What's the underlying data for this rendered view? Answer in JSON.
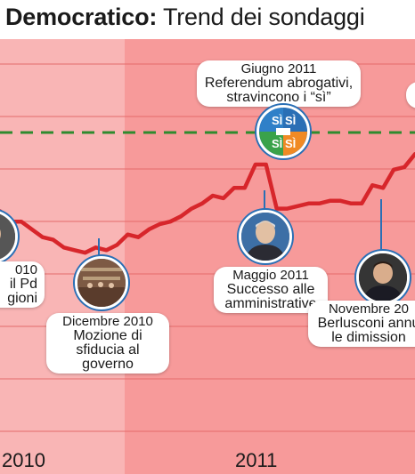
{
  "title": {
    "bold": "Democratico:",
    "rest": " Trend dei sondaggi"
  },
  "chart_data": {
    "type": "line",
    "title": "Democratico: Trend dei sondaggi",
    "x_labels": [
      "2010",
      "2011"
    ],
    "series": [
      {
        "name": "",
        "color": "#d7262b",
        "values": [
          31.0,
          30.6,
          30.6,
          30.3,
          30.0,
          29.9,
          29.6,
          29.5,
          29.4,
          29.6,
          29.5,
          29.7,
          30.1,
          30.0,
          30.3,
          30.5,
          30.6,
          30.8,
          31.1,
          31.3,
          31.6,
          31.5,
          31.9,
          31.9,
          32.8,
          32.8,
          31.1,
          31.1,
          31.2,
          31.3,
          31.3,
          31.4,
          31.4,
          31.3,
          31.3,
          32.0,
          31.9,
          32.6,
          32.7,
          33.2
        ]
      }
    ],
    "reference_line": {
      "style": "dashed",
      "color": "#2e8b2e"
    },
    "background_bands": [
      "#f9b5b5",
      "#f79a9a"
    ],
    "annotations": [
      {
        "date": "Giugno 2011",
        "text": "Referendum abrogativi, stravincono i “sì”",
        "icon": "referendum-si-logo-icon"
      },
      {
        "date": "Maggio 2011",
        "text": "Successo alle amministrative",
        "icon": "politician-portrait-icon"
      },
      {
        "date": "Dicembre 2010",
        "text": "Mozione di sfiducia al governo",
        "icon": "parliament-chamber-icon"
      },
      {
        "date": "Novembre 20",
        "text": "Berlusconi annu le dimission",
        "icon": "berlusconi-portrait-icon"
      },
      {
        "date": "010",
        "text": "il Pd gioni",
        "icon": "portrait-icon"
      }
    ]
  }
}
